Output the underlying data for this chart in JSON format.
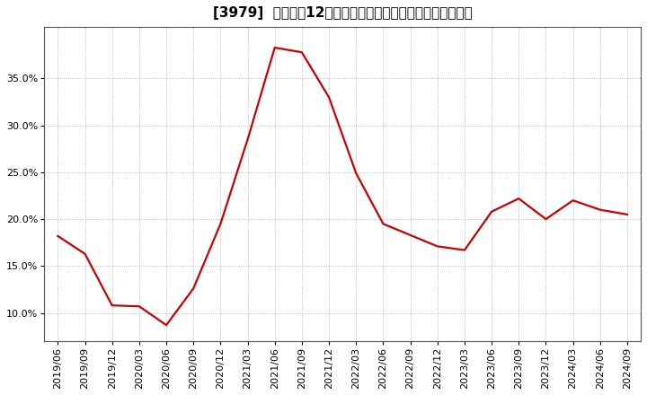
{
  "title": "[3979]  売上高の12か月移動合計の対前年同期増減率の推移",
  "line_color": "#cc0000",
  "bg_color": "#ffffff",
  "plot_bg_color": "#ffffff",
  "grid_color": "#aaaaaa",
  "dates": [
    "2019/06",
    "2019/09",
    "2019/12",
    "2020/03",
    "2020/06",
    "2020/09",
    "2020/12",
    "2021/03",
    "2021/06",
    "2021/09",
    "2021/12",
    "2022/03",
    "2022/06",
    "2022/09",
    "2022/12",
    "2023/03",
    "2023/06",
    "2023/09",
    "2023/12",
    "2024/03",
    "2024/06",
    "2024/09"
  ],
  "values": [
    0.182,
    0.163,
    0.108,
    0.107,
    0.087,
    0.126,
    0.195,
    0.285,
    0.383,
    0.378,
    0.33,
    0.249,
    0.195,
    0.183,
    0.171,
    0.167,
    0.208,
    0.222,
    0.2,
    0.22,
    0.21,
    0.205
  ],
  "yticks": [
    0.1,
    0.15,
    0.2,
    0.25,
    0.3,
    0.35
  ],
  "ylim": [
    0.07,
    0.405
  ],
  "title_fontsize": 11,
  "tick_fontsize": 8,
  "line_width": 1.6
}
